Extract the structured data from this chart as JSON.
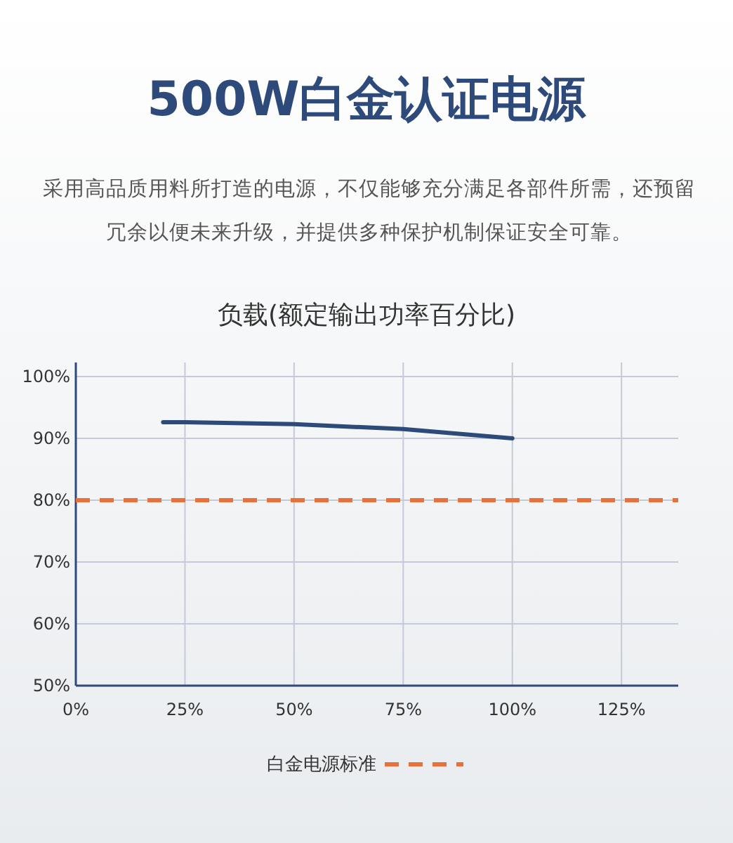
{
  "chart_data": {
    "type": "line",
    "title": "500W白金认证电源",
    "subtitle": "采用高品质用料所打造的电源，不仅能够充分满足各部件所需，还预留冗余以便未来升级，并提供多种保护机制保证安全可靠。",
    "xlabel": "负载(额定输出功率百分比)",
    "series": [
      {
        "color": "#2e4a78",
        "x": [
          20,
          25,
          50,
          75,
          100
        ],
        "values": [
          92.6,
          92.6,
          92.3,
          91.5,
          90.0
        ]
      }
    ],
    "xlim": [
      0,
      138
    ],
    "ylim": [
      50,
      100
    ],
    "xticks": [
      {
        "value": 0,
        "label": "0%"
      },
      {
        "value": 25,
        "label": "25%"
      },
      {
        "value": 50,
        "label": "50%"
      },
      {
        "value": 75,
        "label": "75%"
      },
      {
        "value": 100,
        "label": "100%"
      },
      {
        "value": 125,
        "label": "125%"
      }
    ],
    "yticks": [
      {
        "value": 50,
        "label": "50%"
      },
      {
        "value": 60,
        "label": "60%"
      },
      {
        "value": 70,
        "label": "70%"
      },
      {
        "value": 80,
        "label": "80%"
      },
      {
        "value": 90,
        "label": "90%"
      },
      {
        "value": 100,
        "label": "100%"
      }
    ],
    "grid": true,
    "legend": "bottom",
    "line_style": "solid",
    "ref_lines": [
      {
        "axis": "y",
        "value": 80,
        "label": "白金电源标准",
        "color": "#e8703a",
        "line_style": "dashed"
      }
    ]
  }
}
